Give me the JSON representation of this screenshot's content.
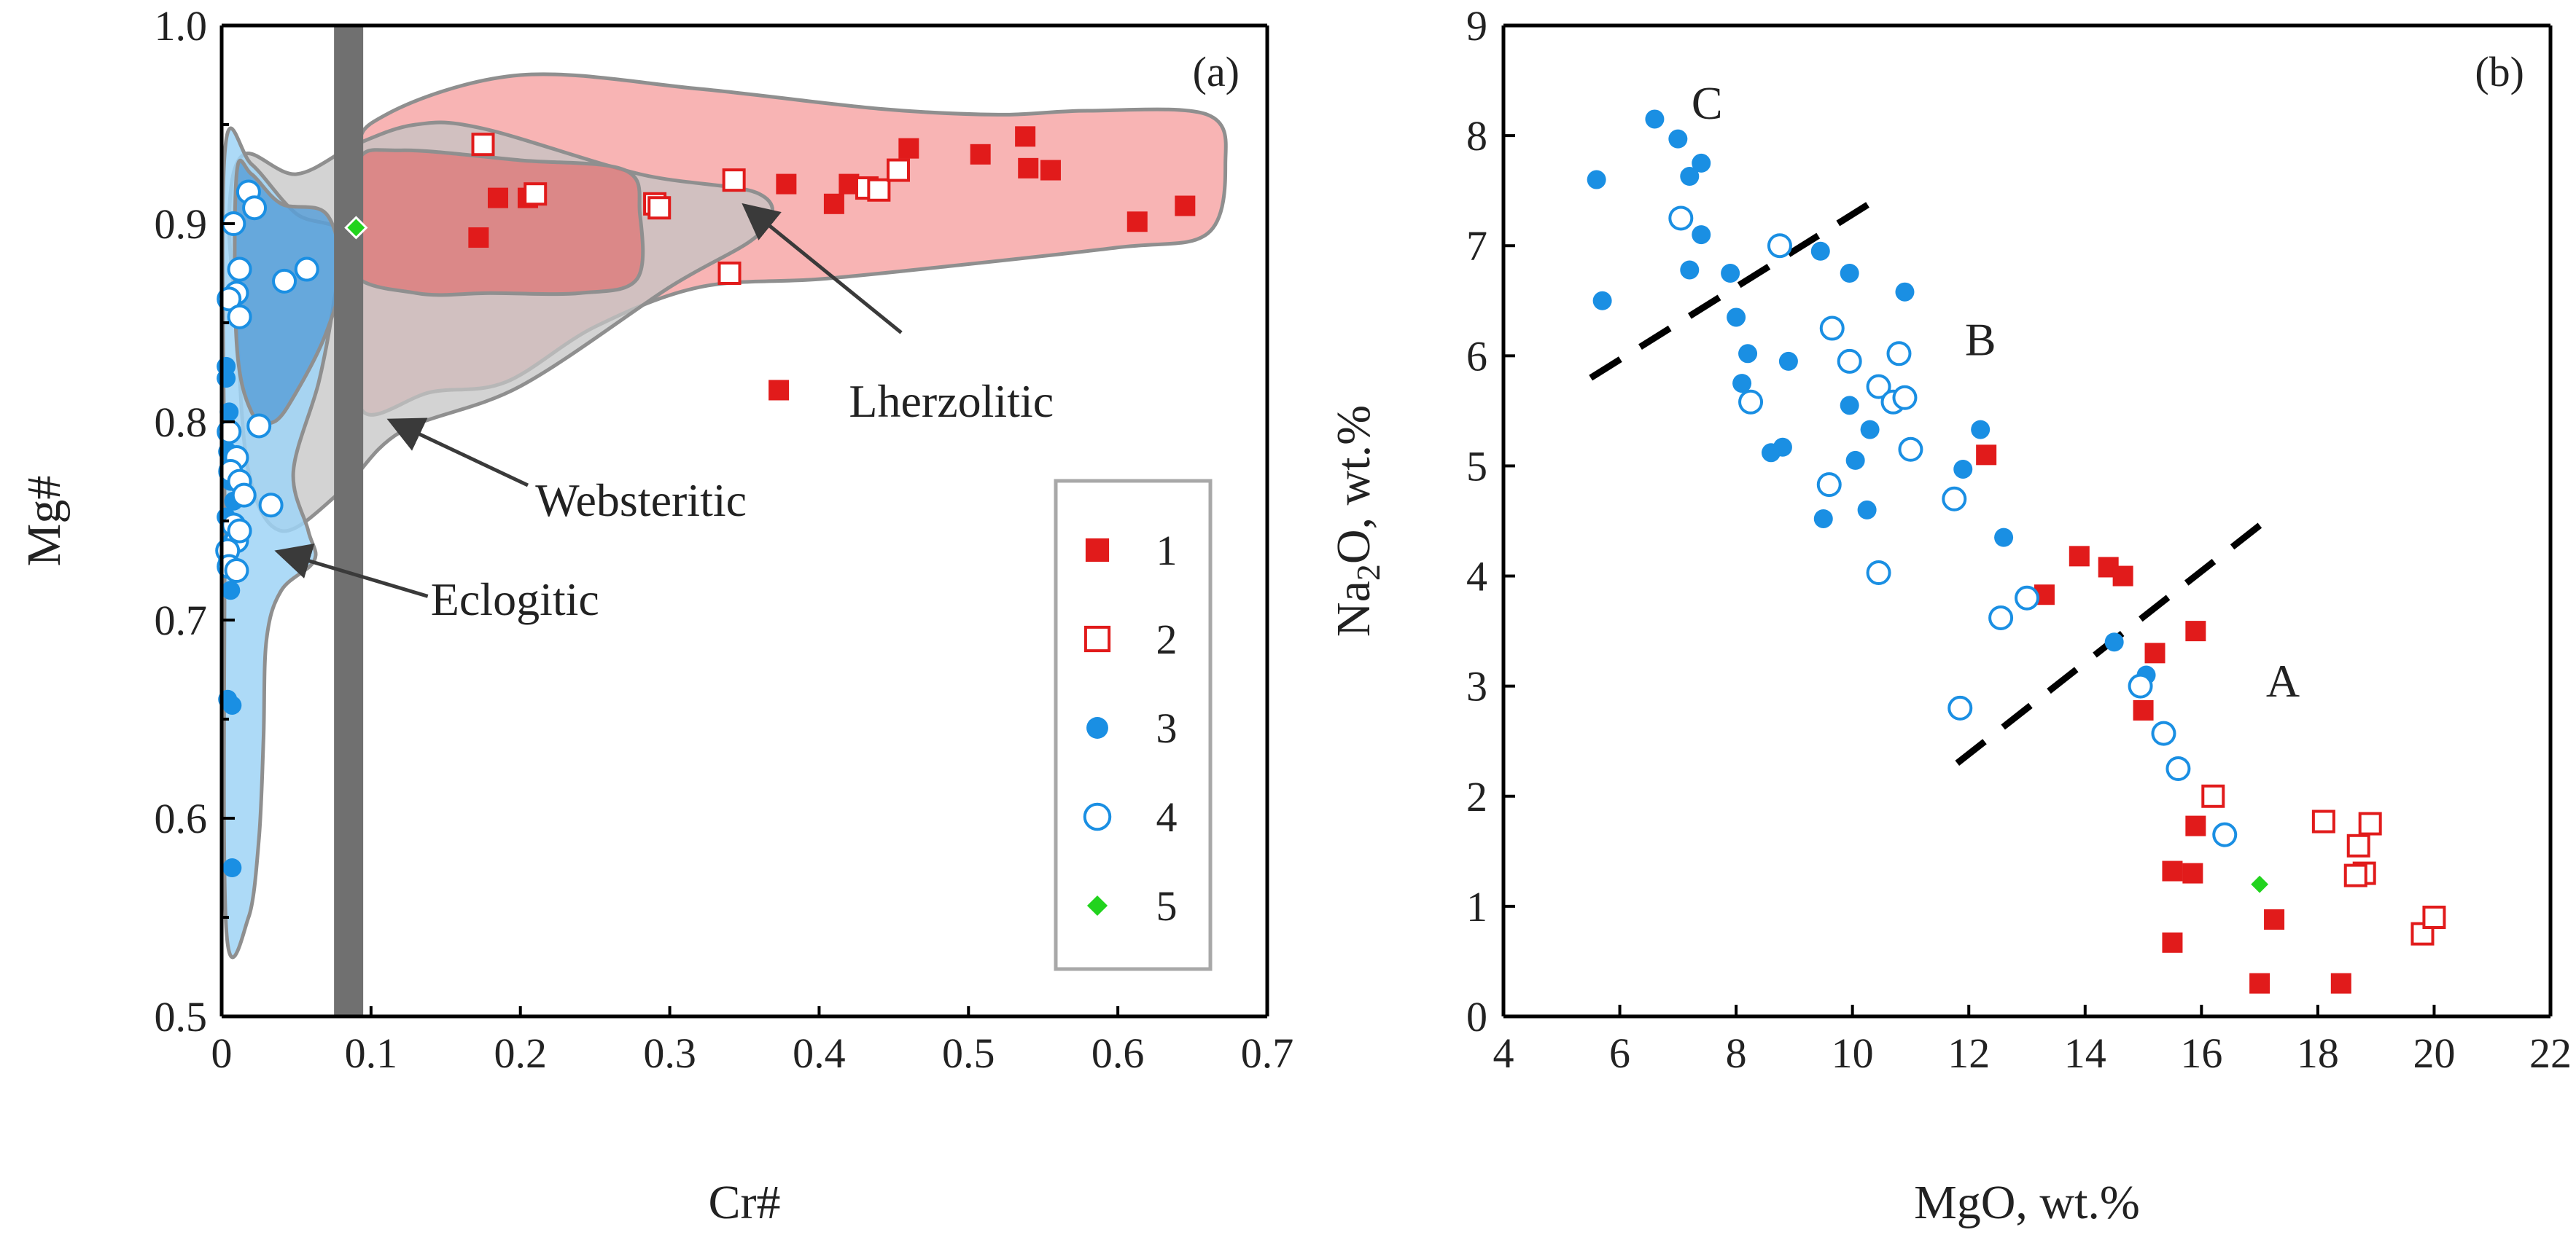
{
  "colors": {
    "lherzolitic": "#e11b1b",
    "eclogitic": "#1a8fe3",
    "green": "#22d31e",
    "lherz_field": "#f7a7a7",
    "lherz_core": "#e07070",
    "webst_field": "#c4c4c4",
    "eclog_field": "#9fd3f6",
    "eclog_core": "#5aa0d8",
    "vband": "#707070"
  },
  "legend": {
    "items": [
      {
        "label": "1",
        "symbol": "filled-square",
        "color": "#e11b1b"
      },
      {
        "label": "2",
        "symbol": "open-square",
        "color": "#e11b1b"
      },
      {
        "label": "3",
        "symbol": "filled-circle",
        "color": "#1a8fe3"
      },
      {
        "label": "4",
        "symbol": "open-circle",
        "color": "#1a8fe3"
      },
      {
        "label": "5",
        "symbol": "filled-diamond",
        "color": "#22d31e"
      }
    ]
  },
  "chart_data": [
    {
      "type": "scatter",
      "panel_label": "(a)",
      "xlabel": "Cr#",
      "ylabel": "Mg#",
      "xlim": [
        0,
        0.7
      ],
      "ylim": [
        0.5,
        1.0
      ],
      "x_ticks": [
        "0",
        "0.1",
        "0.2",
        "0.3",
        "0.4",
        "0.5",
        "0.6",
        "0.7"
      ],
      "y_ticks": [
        "0.5",
        "0.6",
        "0.7",
        "0.8",
        "0.9",
        "1.0"
      ],
      "vertical_band_x": 0.085,
      "fields": [
        {
          "name": "Lherzolitic",
          "key": "lherz_field",
          "points": [
            [
              0.095,
              0.805
            ],
            [
              0.09,
              0.85
            ],
            [
              0.09,
              0.93
            ],
            [
              0.11,
              0.955
            ],
            [
              0.2,
              0.975
            ],
            [
              0.32,
              0.968
            ],
            [
              0.44,
              0.958
            ],
            [
              0.52,
              0.955
            ],
            [
              0.58,
              0.957
            ],
            [
              0.66,
              0.955
            ],
            [
              0.672,
              0.93
            ],
            [
              0.66,
              0.895
            ],
            [
              0.6,
              0.888
            ],
            [
              0.48,
              0.878
            ],
            [
              0.4,
              0.872
            ],
            [
              0.32,
              0.868
            ],
            [
              0.25,
              0.848
            ],
            [
              0.19,
              0.82
            ],
            [
              0.14,
              0.815
            ]
          ]
        },
        {
          "name": "Lherzolitic core",
          "key": "lherz_core",
          "points": [
            [
              0.085,
              0.878
            ],
            [
              0.09,
              0.93
            ],
            [
              0.12,
              0.937
            ],
            [
              0.2,
              0.932
            ],
            [
              0.27,
              0.927
            ],
            [
              0.28,
              0.905
            ],
            [
              0.278,
              0.872
            ],
            [
              0.24,
              0.865
            ],
            [
              0.18,
              0.865
            ],
            [
              0.13,
              0.865
            ]
          ]
        },
        {
          "name": "Websteritic",
          "key": "webst_field",
          "points": [
            [
              0.015,
              0.935
            ],
            [
              0.05,
              0.925
            ],
            [
              0.09,
              0.94
            ],
            [
              0.13,
              0.95
            ],
            [
              0.175,
              0.948
            ],
            [
              0.28,
              0.925
            ],
            [
              0.36,
              0.915
            ],
            [
              0.36,
              0.895
            ],
            [
              0.3,
              0.868
            ],
            [
              0.2,
              0.818
            ],
            [
              0.12,
              0.795
            ],
            [
              0.08,
              0.765
            ],
            [
              0.04,
              0.745
            ],
            [
              0.018,
              0.775
            ],
            [
              0.01,
              0.85
            ],
            [
              0.005,
              0.905
            ]
          ]
        },
        {
          "name": "Eclogitic",
          "key": "eclog_field",
          "points": [
            [
              0.002,
              0.935
            ],
            [
              0.02,
              0.93
            ],
            [
              0.05,
              0.905
            ],
            [
              0.08,
              0.895
            ],
            [
              0.075,
              0.86
            ],
            [
              0.065,
              0.82
            ],
            [
              0.048,
              0.775
            ],
            [
              0.058,
              0.745
            ],
            [
              0.062,
              0.73
            ],
            [
              0.04,
              0.715
            ],
            [
              0.03,
              0.69
            ],
            [
              0.028,
              0.64
            ],
            [
              0.025,
              0.59
            ],
            [
              0.018,
              0.55
            ],
            [
              0.003,
              0.545
            ],
            [
              0.002,
              0.75
            ]
          ]
        },
        {
          "name": "Eclogitic core",
          "key": "eclog_core",
          "points": [
            [
              0.01,
              0.925
            ],
            [
              0.02,
              0.925
            ],
            [
              0.04,
              0.91
            ],
            [
              0.07,
              0.905
            ],
            [
              0.08,
              0.875
            ],
            [
              0.07,
              0.845
            ],
            [
              0.05,
              0.815
            ],
            [
              0.035,
              0.8
            ],
            [
              0.02,
              0.805
            ],
            [
              0.01,
              0.84
            ]
          ]
        }
      ],
      "series": [
        {
          "name": "1",
          "symbol": "filled-square",
          "points": [
            [
              0.172,
              0.893
            ],
            [
              0.185,
              0.913
            ],
            [
              0.205,
              0.913
            ],
            [
              0.378,
              0.92
            ],
            [
              0.41,
              0.91
            ],
            [
              0.42,
              0.92
            ],
            [
              0.46,
              0.938
            ],
            [
              0.508,
              0.935
            ],
            [
              0.538,
              0.944
            ],
            [
              0.54,
              0.928
            ],
            [
              0.555,
              0.927
            ],
            [
              0.613,
              0.901
            ],
            [
              0.645,
              0.909
            ],
            [
              0.373,
              0.816
            ]
          ]
        },
        {
          "name": "2",
          "symbol": "open-square",
          "points": [
            [
              0.175,
              0.94
            ],
            [
              0.21,
              0.915
            ],
            [
              0.29,
              0.91
            ],
            [
              0.293,
              0.908
            ],
            [
              0.34,
              0.875
            ],
            [
              0.343,
              0.922
            ],
            [
              0.432,
              0.918
            ],
            [
              0.44,
              0.917
            ],
            [
              0.453,
              0.927
            ]
          ]
        },
        {
          "name": "3",
          "symbol": "filled-circle",
          "points": [
            [
              0.003,
              0.822
            ],
            [
              0.005,
              0.805
            ],
            [
              0.006,
              0.795
            ],
            [
              0.004,
              0.785
            ],
            [
              0.008,
              0.78
            ],
            [
              0.006,
              0.77
            ],
            [
              0.008,
              0.76
            ],
            [
              0.003,
              0.752
            ],
            [
              0.007,
              0.74
            ],
            [
              0.004,
              0.73
            ],
            [
              0.006,
              0.715
            ],
            [
              0.004,
              0.66
            ],
            [
              0.007,
              0.657
            ],
            [
              0.007,
              0.575
            ],
            [
              0.003,
              0.828
            ]
          ]
        },
        {
          "name": "4",
          "symbol": "open-circle",
          "points": [
            [
              0.018,
              0.916
            ],
            [
              0.022,
              0.908
            ],
            [
              0.008,
              0.9
            ],
            [
              0.012,
              0.877
            ],
            [
              0.01,
              0.865
            ],
            [
              0.005,
              0.862
            ],
            [
              0.012,
              0.853
            ],
            [
              0.042,
              0.871
            ],
            [
              0.057,
              0.877
            ],
            [
              0.025,
              0.798
            ],
            [
              0.005,
              0.795
            ],
            [
              0.01,
              0.782
            ],
            [
              0.006,
              0.775
            ],
            [
              0.012,
              0.77
            ],
            [
              0.015,
              0.763
            ],
            [
              0.033,
              0.758
            ],
            [
              0.008,
              0.748
            ],
            [
              0.01,
              0.74
            ],
            [
              0.004,
              0.735
            ],
            [
              0.005,
              0.727
            ],
            [
              0.01,
              0.725
            ],
            [
              0.012,
              0.745
            ]
          ]
        },
        {
          "name": "5",
          "symbol": "filled-diamond",
          "points": [
            [
              0.09,
              0.898
            ]
          ]
        }
      ],
      "annotations": [
        {
          "text": "Lherzolitic",
          "x": 0.42,
          "y": 0.81,
          "arrow_from": [
            0.455,
            0.845
          ],
          "arrow_to": [
            0.352,
            0.908
          ]
        },
        {
          "text": "Websteritic",
          "x": 0.21,
          "y": 0.76,
          "arrow_from": [
            0.205,
            0.768
          ],
          "arrow_to": [
            0.115,
            0.8
          ]
        },
        {
          "text": "Eclogitic",
          "x": 0.14,
          "y": 0.71,
          "arrow_from": [
            0.138,
            0.712
          ],
          "arrow_to": [
            0.04,
            0.734
          ]
        }
      ]
    },
    {
      "type": "scatter",
      "panel_label": "(b)",
      "xlabel": "MgO, wt.%",
      "ylabel_parts": [
        "Na",
        "2",
        "O, wt.%"
      ],
      "xlim": [
        4,
        22
      ],
      "ylim": [
        0,
        9
      ],
      "x_ticks": [
        "4",
        "6",
        "8",
        "10",
        "12",
        "14",
        "16",
        "18",
        "20",
        "22"
      ],
      "y_ticks": [
        "0",
        "1",
        "2",
        "3",
        "4",
        "5",
        "6",
        "7",
        "8",
        "9"
      ],
      "dashed_lines": [
        [
          [
            5.5,
            5.8
          ],
          [
            10.5,
            7.45
          ]
        ],
        [
          [
            11.8,
            2.3
          ],
          [
            17.1,
            4.5
          ]
        ]
      ],
      "region_labels": [
        {
          "text": "C",
          "x": 7.5,
          "y": 8.3
        },
        {
          "text": "B",
          "x": 12.2,
          "y": 6.15
        },
        {
          "text": "A",
          "x": 17.4,
          "y": 3.05
        }
      ],
      "series": [
        {
          "name": "1",
          "symbol": "filled-square",
          "points": [
            [
              12.3,
              5.1
            ],
            [
              13.3,
              3.83
            ],
            [
              13.9,
              4.18
            ],
            [
              14.4,
              4.08
            ],
            [
              14.65,
              4.0
            ],
            [
              15.2,
              3.3
            ],
            [
              15.0,
              2.78
            ],
            [
              15.9,
              3.5
            ],
            [
              15.9,
              1.73
            ],
            [
              15.5,
              1.32
            ],
            [
              15.85,
              1.3
            ],
            [
              15.5,
              0.67
            ],
            [
              17.25,
              0.88
            ],
            [
              17.0,
              0.3
            ],
            [
              18.4,
              0.3
            ]
          ]
        },
        {
          "name": "2",
          "symbol": "open-square",
          "points": [
            [
              16.2,
              2.0
            ],
            [
              18.1,
              1.77
            ],
            [
              18.9,
              1.75
            ],
            [
              18.7,
              1.55
            ],
            [
              18.8,
              1.3
            ],
            [
              18.65,
              1.28
            ],
            [
              19.8,
              0.75
            ],
            [
              20.0,
              0.9
            ]
          ]
        },
        {
          "name": "3",
          "symbol": "filled-circle",
          "points": [
            [
              5.6,
              7.6
            ],
            [
              5.7,
              6.5
            ],
            [
              6.6,
              8.15
            ],
            [
              7.0,
              7.97
            ],
            [
              7.4,
              7.75
            ],
            [
              7.2,
              7.63
            ],
            [
              7.4,
              7.1
            ],
            [
              7.2,
              6.78
            ],
            [
              7.9,
              6.75
            ],
            [
              8.0,
              6.35
            ],
            [
              8.2,
              6.02
            ],
            [
              8.1,
              5.75
            ],
            [
              8.6,
              5.12
            ],
            [
              8.8,
              5.17
            ],
            [
              8.9,
              5.95
            ],
            [
              9.45,
              6.95
            ],
            [
              9.95,
              6.75
            ],
            [
              10.9,
              6.58
            ],
            [
              9.5,
              4.52
            ],
            [
              10.25,
              4.6
            ],
            [
              10.3,
              5.33
            ],
            [
              9.95,
              5.55
            ],
            [
              10.05,
              5.05
            ],
            [
              11.9,
              4.97
            ],
            [
              12.2,
              5.33
            ],
            [
              12.6,
              4.35
            ],
            [
              14.5,
              3.4
            ],
            [
              15.05,
              3.1
            ]
          ]
        },
        {
          "name": "4",
          "symbol": "open-circle",
          "points": [
            [
              7.05,
              7.25
            ],
            [
              8.75,
              7.0
            ],
            [
              8.25,
              5.58
            ],
            [
              9.65,
              6.25
            ],
            [
              9.95,
              5.95
            ],
            [
              9.6,
              4.83
            ],
            [
              10.45,
              5.72
            ],
            [
              10.7,
              5.58
            ],
            [
              10.8,
              6.02
            ],
            [
              10.9,
              5.62
            ],
            [
              11.0,
              5.15
            ],
            [
              11.75,
              4.7
            ],
            [
              10.45,
              4.03
            ],
            [
              12.55,
              3.62
            ],
            [
              13.0,
              3.8
            ],
            [
              11.85,
              2.8
            ],
            [
              14.95,
              3.0
            ],
            [
              15.35,
              2.57
            ],
            [
              15.6,
              2.25
            ],
            [
              16.4,
              1.65
            ]
          ]
        },
        {
          "name": "5",
          "symbol": "filled-diamond",
          "points": [
            [
              17.0,
              1.2
            ]
          ]
        }
      ]
    }
  ]
}
